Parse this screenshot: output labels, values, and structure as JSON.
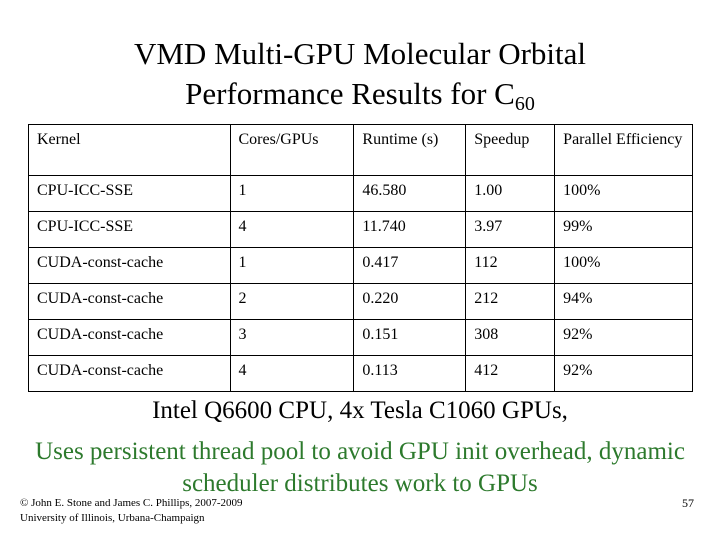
{
  "title": {
    "line1": "VMD Multi-GPU Molecular Orbital",
    "line2_main": "Performance Results for C",
    "line2_sub": "60"
  },
  "table": {
    "headers": [
      "Kernel",
      "Cores/GPUs",
      "Runtime (s)",
      "Speedup",
      "Parallel Efficiency"
    ],
    "rows": [
      [
        "CPU-ICC-SSE",
        "1",
        "46.580",
        "1.00",
        "100%"
      ],
      [
        "CPU-ICC-SSE",
        "4",
        "11.740",
        "3.97",
        "99%"
      ],
      [
        "CUDA-const-cache",
        "1",
        "0.417",
        "112",
        "100%"
      ],
      [
        "CUDA-const-cache",
        "2",
        "0.220",
        "212",
        "94%"
      ],
      [
        "CUDA-const-cache",
        "3",
        "0.151",
        "308",
        "92%"
      ],
      [
        "CUDA-const-cache",
        "4",
        "0.113",
        "412",
        "92%"
      ]
    ]
  },
  "notes": {
    "hardware": "Intel Q6600 CPU, 4x Tesla C1060 GPUs,",
    "method": "Uses persistent thread pool to avoid GPU init overhead, dynamic scheduler distributes work to GPUs"
  },
  "footer": {
    "copyright_line1": "© John E. Stone and James C. Phillips, 2007-2009",
    "copyright_line2": "University of Illinois, Urbana-Champaign",
    "page_number": "57"
  },
  "colors": {
    "accent_text": "#2d7a2d"
  }
}
